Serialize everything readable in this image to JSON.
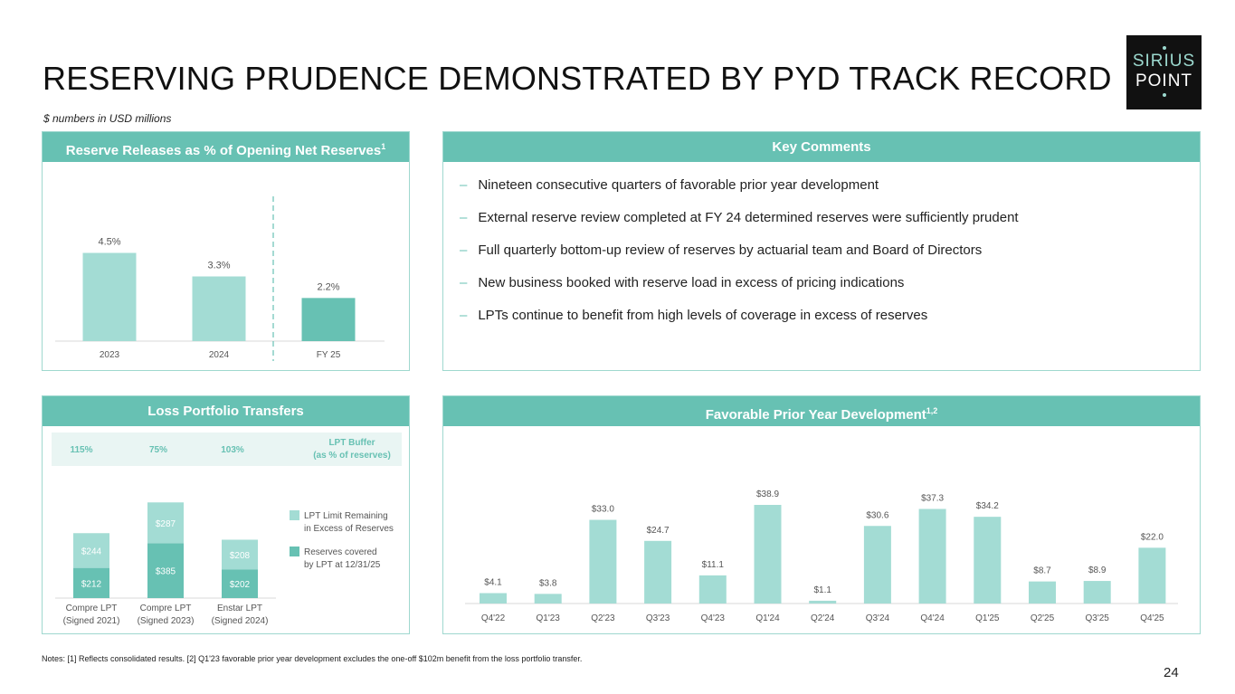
{
  "title": "RESERVING PRUDENCE DEMONSTRATED BY PYD TRACK RECORD",
  "subtitle": "$ numbers in USD millions",
  "logo": {
    "line1": "SIRIUS",
    "line2": "POINT"
  },
  "colors": {
    "accent": "#67c1b3",
    "light": "#a3dcd4",
    "dark_text": "#222222"
  },
  "reserve_panel": {
    "heading": "Reserve Releases as % of Opening Net Reserves",
    "heading_sup": "1"
  },
  "comments_panel": {
    "heading": "Key Comments",
    "items": [
      "Nineteen consecutive quarters of favorable prior year development",
      "External reserve review completed at FY 24 determined reserves were sufficiently prudent",
      "Full quarterly bottom-up review of reserves by actuarial team and Board of Directors",
      "New business booked with reserve load in excess of pricing indications",
      "LPTs continue to benefit from high levels of coverage in excess of reserves"
    ]
  },
  "lpt_panel": {
    "heading": "Loss Portfolio Transfers",
    "buffer_values": [
      "115%",
      "75%",
      "103%"
    ],
    "buffer_label_1": "LPT Buffer",
    "buffer_label_2": "(as % of reserves)",
    "legend": [
      {
        "line1": "LPT Limit Remaining",
        "line2": "in Excess of Reserves"
      },
      {
        "line1": "Reserves covered",
        "line2": "by LPT at 12/31/25"
      }
    ]
  },
  "pyd_panel": {
    "heading": "Favorable Prior Year Development",
    "heading_sup": "1,2"
  },
  "chart_data": [
    {
      "type": "bar",
      "title": "Reserve Releases as % of Opening Net Reserves",
      "categories": [
        "2023",
        "2024",
        "FY 25"
      ],
      "values": [
        4.5,
        3.3,
        2.2
      ],
      "labels": [
        "4.5%",
        "3.3%",
        "2.2%"
      ],
      "ylim": [
        0,
        6
      ],
      "xlabel": "",
      "ylabel": ""
    },
    {
      "type": "bar",
      "stacked": true,
      "title": "Loss Portfolio Transfers",
      "categories": [
        [
          "Compre LPT",
          "(Signed 2021)"
        ],
        [
          "Compre LPT",
          "(Signed 2023)"
        ],
        [
          "Enstar LPT",
          "(Signed 2024)"
        ]
      ],
      "series": [
        {
          "name": "Reserves covered by LPT at 12/31/25",
          "values": [
            212,
            385,
            202
          ],
          "labels": [
            "$212",
            "$385",
            "$202"
          ]
        },
        {
          "name": "LPT Limit Remaining in Excess of Reserves",
          "values": [
            244,
            287,
            208
          ],
          "labels": [
            "$244",
            "$287",
            "$208"
          ]
        }
      ],
      "ylim": [
        0,
        680
      ]
    },
    {
      "type": "bar",
      "title": "Favorable Prior Year Development",
      "categories": [
        "Q4'22",
        "Q1'23",
        "Q2'23",
        "Q3'23",
        "Q4'23",
        "Q1'24",
        "Q2'24",
        "Q3'24",
        "Q4'24",
        "Q1'25",
        "Q2'25",
        "Q3'25",
        "Q4'25"
      ],
      "values": [
        4.1,
        3.8,
        33.0,
        24.7,
        11.1,
        38.9,
        1.1,
        30.6,
        37.3,
        34.2,
        8.7,
        8.9,
        22.0
      ],
      "labels": [
        "$4.1",
        "$3.8",
        "$33.0",
        "$24.7",
        "$11.1",
        "$38.9",
        "$1.1",
        "$30.6",
        "$37.3",
        "$34.2",
        "$8.7",
        "$8.9",
        "$22.0"
      ],
      "ylim": [
        0,
        40
      ],
      "xlabel": "",
      "ylabel": ""
    }
  ],
  "notes": "Notes: [1] Reflects consolidated results. [2] Q1'23 favorable prior year development excludes the one-off $102m benefit from the loss portfolio transfer.",
  "page_number": "24"
}
